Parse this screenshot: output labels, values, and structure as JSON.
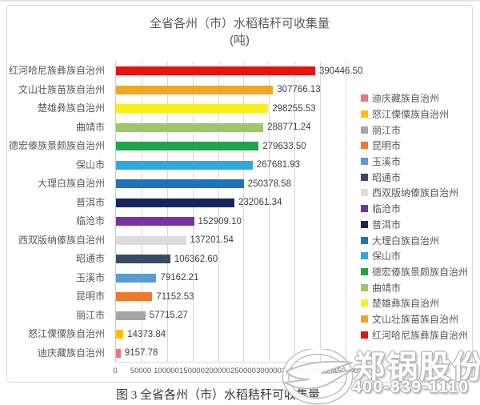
{
  "chart": {
    "title_line1": "全省各州（市）水稻秸秆可收集量",
    "title_line2": "(吨)"
  },
  "caption": "图 3  全省各州（市）水稻秸秆可收集量",
  "watermark": {
    "brand": "郑锅股份",
    "phone": "400-839-1110",
    "logo": "z-globe-logo"
  },
  "colors": {
    "chart_border": "#d9d9d9",
    "gridline": "#d9d9d9",
    "title_text": "#595959",
    "axis_text": "#595959",
    "value_text": "#404040"
  },
  "chart_data": {
    "type": "bar",
    "orientation": "horizontal",
    "title": "全省各州（市）水稻秸秆可收集量",
    "unit_label": "(吨)",
    "xlabel": "",
    "ylabel": "",
    "xlim": [
      0,
      450000
    ],
    "grid": true,
    "legend_position": "right",
    "categories": [
      "红河哈尼族彝族自治州",
      "文山壮族苗族自治州",
      "楚雄彝族自治州",
      "曲靖市",
      "德宏傣族景颇族自治州",
      "保山市",
      "大理白族自治州",
      "普洱市",
      "临沧市",
      "西双版纳傣族自治州",
      "昭通市",
      "玉溪市",
      "昆明市",
      "丽江市",
      "怒江傈僳族自治州",
      "迪庆藏族自治州"
    ],
    "values": [
      390446.5,
      307766.13,
      298255.53,
      288771.24,
      279633.5,
      267681.93,
      250378.58,
      232061.34,
      152909.1,
      137201.54,
      106362.6,
      79162.21,
      71152.53,
      57715.27,
      14373.84,
      9157.78
    ],
    "value_labels": [
      "390446.50",
      "307766.13",
      "298255.53",
      "288771.24",
      "279633.50",
      "267681.93",
      "250378.58",
      "232061.34",
      "152909.10",
      "137201.54",
      "106362.60",
      "79162.21",
      "71152.53",
      "57715.27",
      "14373.84",
      "9157.78"
    ],
    "bar_colors": [
      "#e8130c",
      "#eea824",
      "#fbee1f",
      "#9bc862",
      "#21a447",
      "#2fa8e1",
      "#1b75bc",
      "#17275a",
      "#7c2fa0",
      "#dcdcdc",
      "#374b66",
      "#5b9bd5",
      "#ec7b2f",
      "#a6a6a6",
      "#ffc000",
      "#f0717e"
    ],
    "x_ticks": [
      "0",
      "50000",
      "100000",
      "150000",
      "200000",
      "250000",
      "300000",
      "350000",
      "400000",
      "450000"
    ],
    "legend": [
      {
        "label": "迪庆藏族自治州",
        "color": "#f0717e"
      },
      {
        "label": "怒江傈僳族自治州",
        "color": "#ffc000"
      },
      {
        "label": "丽江市",
        "color": "#a6a6a6"
      },
      {
        "label": "昆明市",
        "color": "#ec7b2f"
      },
      {
        "label": "玉溪市",
        "color": "#5b9bd5"
      },
      {
        "label": "昭通市",
        "color": "#374b66"
      },
      {
        "label": "西双版纳傣族自治州",
        "color": "#dcdcdc"
      },
      {
        "label": "临沧市",
        "color": "#7c2fa0"
      },
      {
        "label": "普洱市",
        "color": "#17275a"
      },
      {
        "label": "大理白族自治州",
        "color": "#1b75bc"
      },
      {
        "label": "保山市",
        "color": "#2fa8e1"
      },
      {
        "label": "德宏傣族景颇族自治州",
        "color": "#21a447"
      },
      {
        "label": "曲靖市",
        "color": "#9bc862"
      },
      {
        "label": "楚雄彝族自治州",
        "color": "#fbee1f"
      },
      {
        "label": "文山壮族苗族自治州",
        "color": "#eea824"
      },
      {
        "label": "红河哈尼族彝族自治州",
        "color": "#e8130c"
      }
    ]
  }
}
